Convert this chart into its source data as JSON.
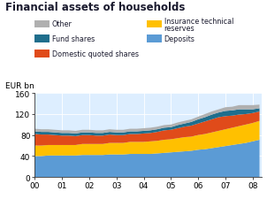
{
  "title": "Financial assets of households",
  "ylabel": "EUR bn",
  "ylim": [
    0,
    160
  ],
  "yticks": [
    0,
    40,
    80,
    120,
    160
  ],
  "years": [
    2000,
    2000.25,
    2000.5,
    2000.75,
    2001,
    2001.25,
    2001.5,
    2001.75,
    2002,
    2002.25,
    2002.5,
    2002.75,
    2003,
    2003.25,
    2003.5,
    2003.75,
    2004,
    2004.25,
    2004.5,
    2004.75,
    2005,
    2005.25,
    2005.5,
    2005.75,
    2006,
    2006.25,
    2006.5,
    2006.75,
    2007,
    2007.25,
    2007.5,
    2007.75,
    2008,
    2008.25
  ],
  "deposits": [
    40,
    40,
    41,
    41,
    41,
    41,
    41,
    42,
    42,
    42,
    42,
    43,
    43,
    43,
    44,
    44,
    44,
    44,
    45,
    46,
    47,
    48,
    49,
    50,
    52,
    53,
    55,
    57,
    59,
    61,
    63,
    65,
    68,
    71
  ],
  "insurance": [
    20,
    20,
    20,
    20,
    20,
    20,
    20,
    21,
    21,
    21,
    21,
    22,
    22,
    22,
    23,
    23,
    23,
    24,
    24,
    25,
    25,
    26,
    27,
    27,
    28,
    29,
    30,
    31,
    32,
    33,
    34,
    35,
    35,
    36
  ],
  "dom_quoted": [
    22,
    21,
    20,
    19,
    18,
    18,
    17,
    17,
    17,
    16,
    16,
    16,
    15,
    15,
    15,
    15,
    16,
    16,
    17,
    18,
    18,
    19,
    20,
    21,
    22,
    24,
    25,
    26,
    25,
    23,
    22,
    20,
    19,
    18
  ],
  "fund_shares": [
    5,
    5,
    5,
    5,
    5,
    5,
    5,
    5,
    5,
    5,
    5,
    5,
    5,
    5,
    5,
    5,
    5,
    5,
    5,
    5,
    5,
    6,
    6,
    7,
    8,
    8,
    9,
    9,
    10,
    10,
    10,
    9,
    7,
    6
  ],
  "other": [
    5,
    5,
    5,
    5,
    5,
    5,
    5,
    5,
    5,
    5,
    5,
    5,
    5,
    5,
    5,
    5,
    5,
    5,
    5,
    5,
    5,
    5,
    5,
    5,
    5,
    6,
    6,
    6,
    7,
    7,
    8,
    8,
    8,
    7
  ],
  "colors": {
    "deposits": "#5b9bd5",
    "insurance": "#ffc000",
    "dom_quoted": "#e04b1a",
    "fund_shares": "#1f6e8c",
    "other": "#b0b0b0"
  },
  "xtick_positions": [
    2000,
    2001,
    2002,
    2003,
    2004,
    2005,
    2006,
    2007,
    2008
  ],
  "xtick_labels": [
    "00",
    "01",
    "02",
    "03",
    "04",
    "05",
    "06",
    "07",
    "08"
  ],
  "legend_labels_left": [
    "Other",
    "Fund shares",
    "Domestic quoted shares"
  ],
  "legend_colors_left": [
    "#b0b0b0",
    "#1f6e8c",
    "#e04b1a"
  ],
  "legend_labels_right": [
    "Insurance technical\nreserves",
    "Deposits"
  ],
  "legend_colors_right": [
    "#ffc000",
    "#5b9bd5"
  ],
  "bg_color": "#ddeeff",
  "title_color": "#1a1a2e"
}
